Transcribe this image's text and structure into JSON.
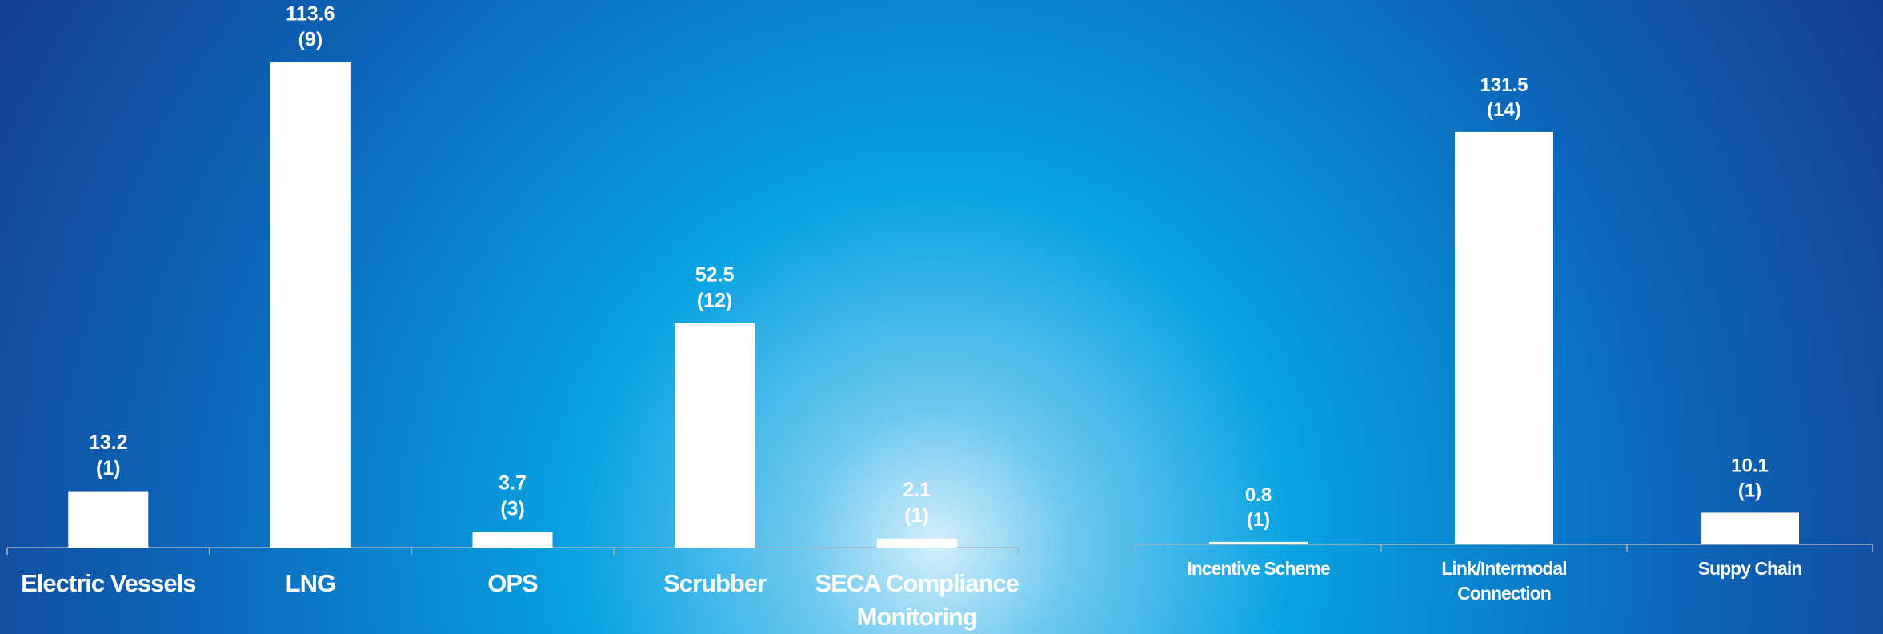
{
  "chart_data": [
    {
      "type": "bar",
      "categories": [
        "Electric Vessels",
        "LNG",
        "OPS",
        "Scrubber",
        "SECA Compliance Monitoring"
      ],
      "values": [
        13.2,
        113.6,
        3.7,
        52.5,
        2.1
      ],
      "counts": [
        1,
        9,
        3,
        12,
        1
      ],
      "count_labels": [
        "(1)",
        "(9)",
        "(3)",
        "(12)",
        "(1)"
      ],
      "color": "#ffffff",
      "ylim": [
        0,
        128.2
      ]
    },
    {
      "type": "bar",
      "categories": [
        "Incentive Scheme",
        "Link/Intermodal Connection",
        "Suppy Chain"
      ],
      "values": [
        0.8,
        131.5,
        10.1
      ],
      "counts": [
        1,
        14,
        1
      ],
      "count_labels": [
        "(1)",
        "(14)",
        "(1)"
      ],
      "color": "#ffffff",
      "ylim": [
        0,
        173.6
      ]
    }
  ]
}
